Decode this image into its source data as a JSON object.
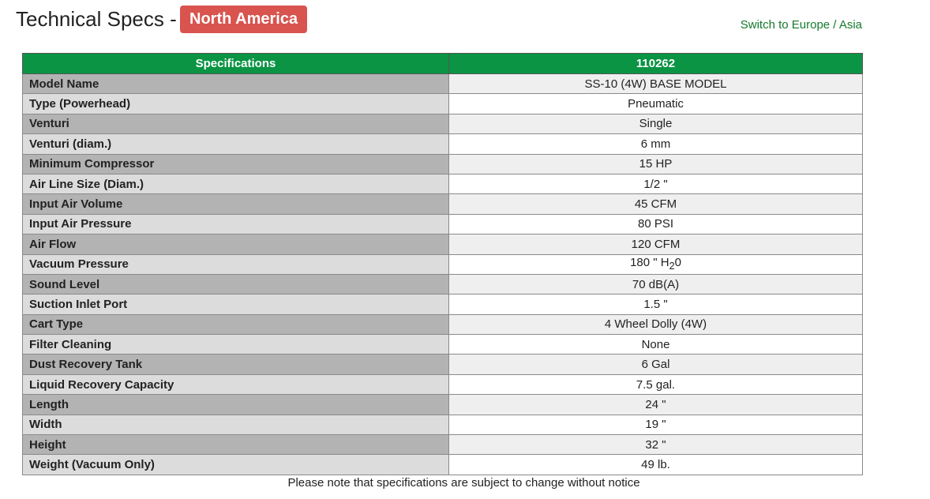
{
  "header": {
    "title": "Technical Specs -",
    "region_badge": "North America",
    "switch_link": "Switch to Europe / Asia"
  },
  "table": {
    "headers": [
      "Specifications",
      "110262"
    ],
    "rows": [
      {
        "label": "Model Name",
        "value": "SS-10 (4W) BASE MODEL"
      },
      {
        "label": "Type (Powerhead)",
        "value": "Pneumatic"
      },
      {
        "label": "Venturi",
        "value": "Single"
      },
      {
        "label": "Venturi (diam.)",
        "value": "6 mm"
      },
      {
        "label": "Minimum Compressor",
        "value": "15 HP"
      },
      {
        "label": "Air Line Size (Diam.)",
        "value": "1/2 \""
      },
      {
        "label": "Input Air Volume",
        "value": "45 CFM"
      },
      {
        "label": "Input Air Pressure",
        "value": "80 PSI"
      },
      {
        "label": "Air Flow",
        "value": "120 CFM"
      },
      {
        "label": "Vacuum Pressure",
        "value": "180 \" H",
        "sub": "2",
        "suffix": "0"
      },
      {
        "label": "Sound Level",
        "value": "70 dB(A)"
      },
      {
        "label": "Suction Inlet Port",
        "value": "1.5 \""
      },
      {
        "label": "Cart Type",
        "value": "4 Wheel Dolly (4W)"
      },
      {
        "label": "Filter Cleaning",
        "value": "None"
      },
      {
        "label": "Dust Recovery Tank",
        "value": "6 Gal"
      },
      {
        "label": "Liquid Recovery Capacity",
        "value": "7.5 gal."
      },
      {
        "label": "Length",
        "value": "24 \""
      },
      {
        "label": "Width",
        "value": "19 \""
      },
      {
        "label": "Height",
        "value": "32 \""
      },
      {
        "label": "Weight (Vacuum Only)",
        "value": "49 lb."
      }
    ]
  },
  "footnote": "Please note that specifications are subject to change without notice",
  "colors": {
    "header_green": "#0a9444",
    "badge_red": "#d9534f",
    "link_green": "#157a2b"
  }
}
